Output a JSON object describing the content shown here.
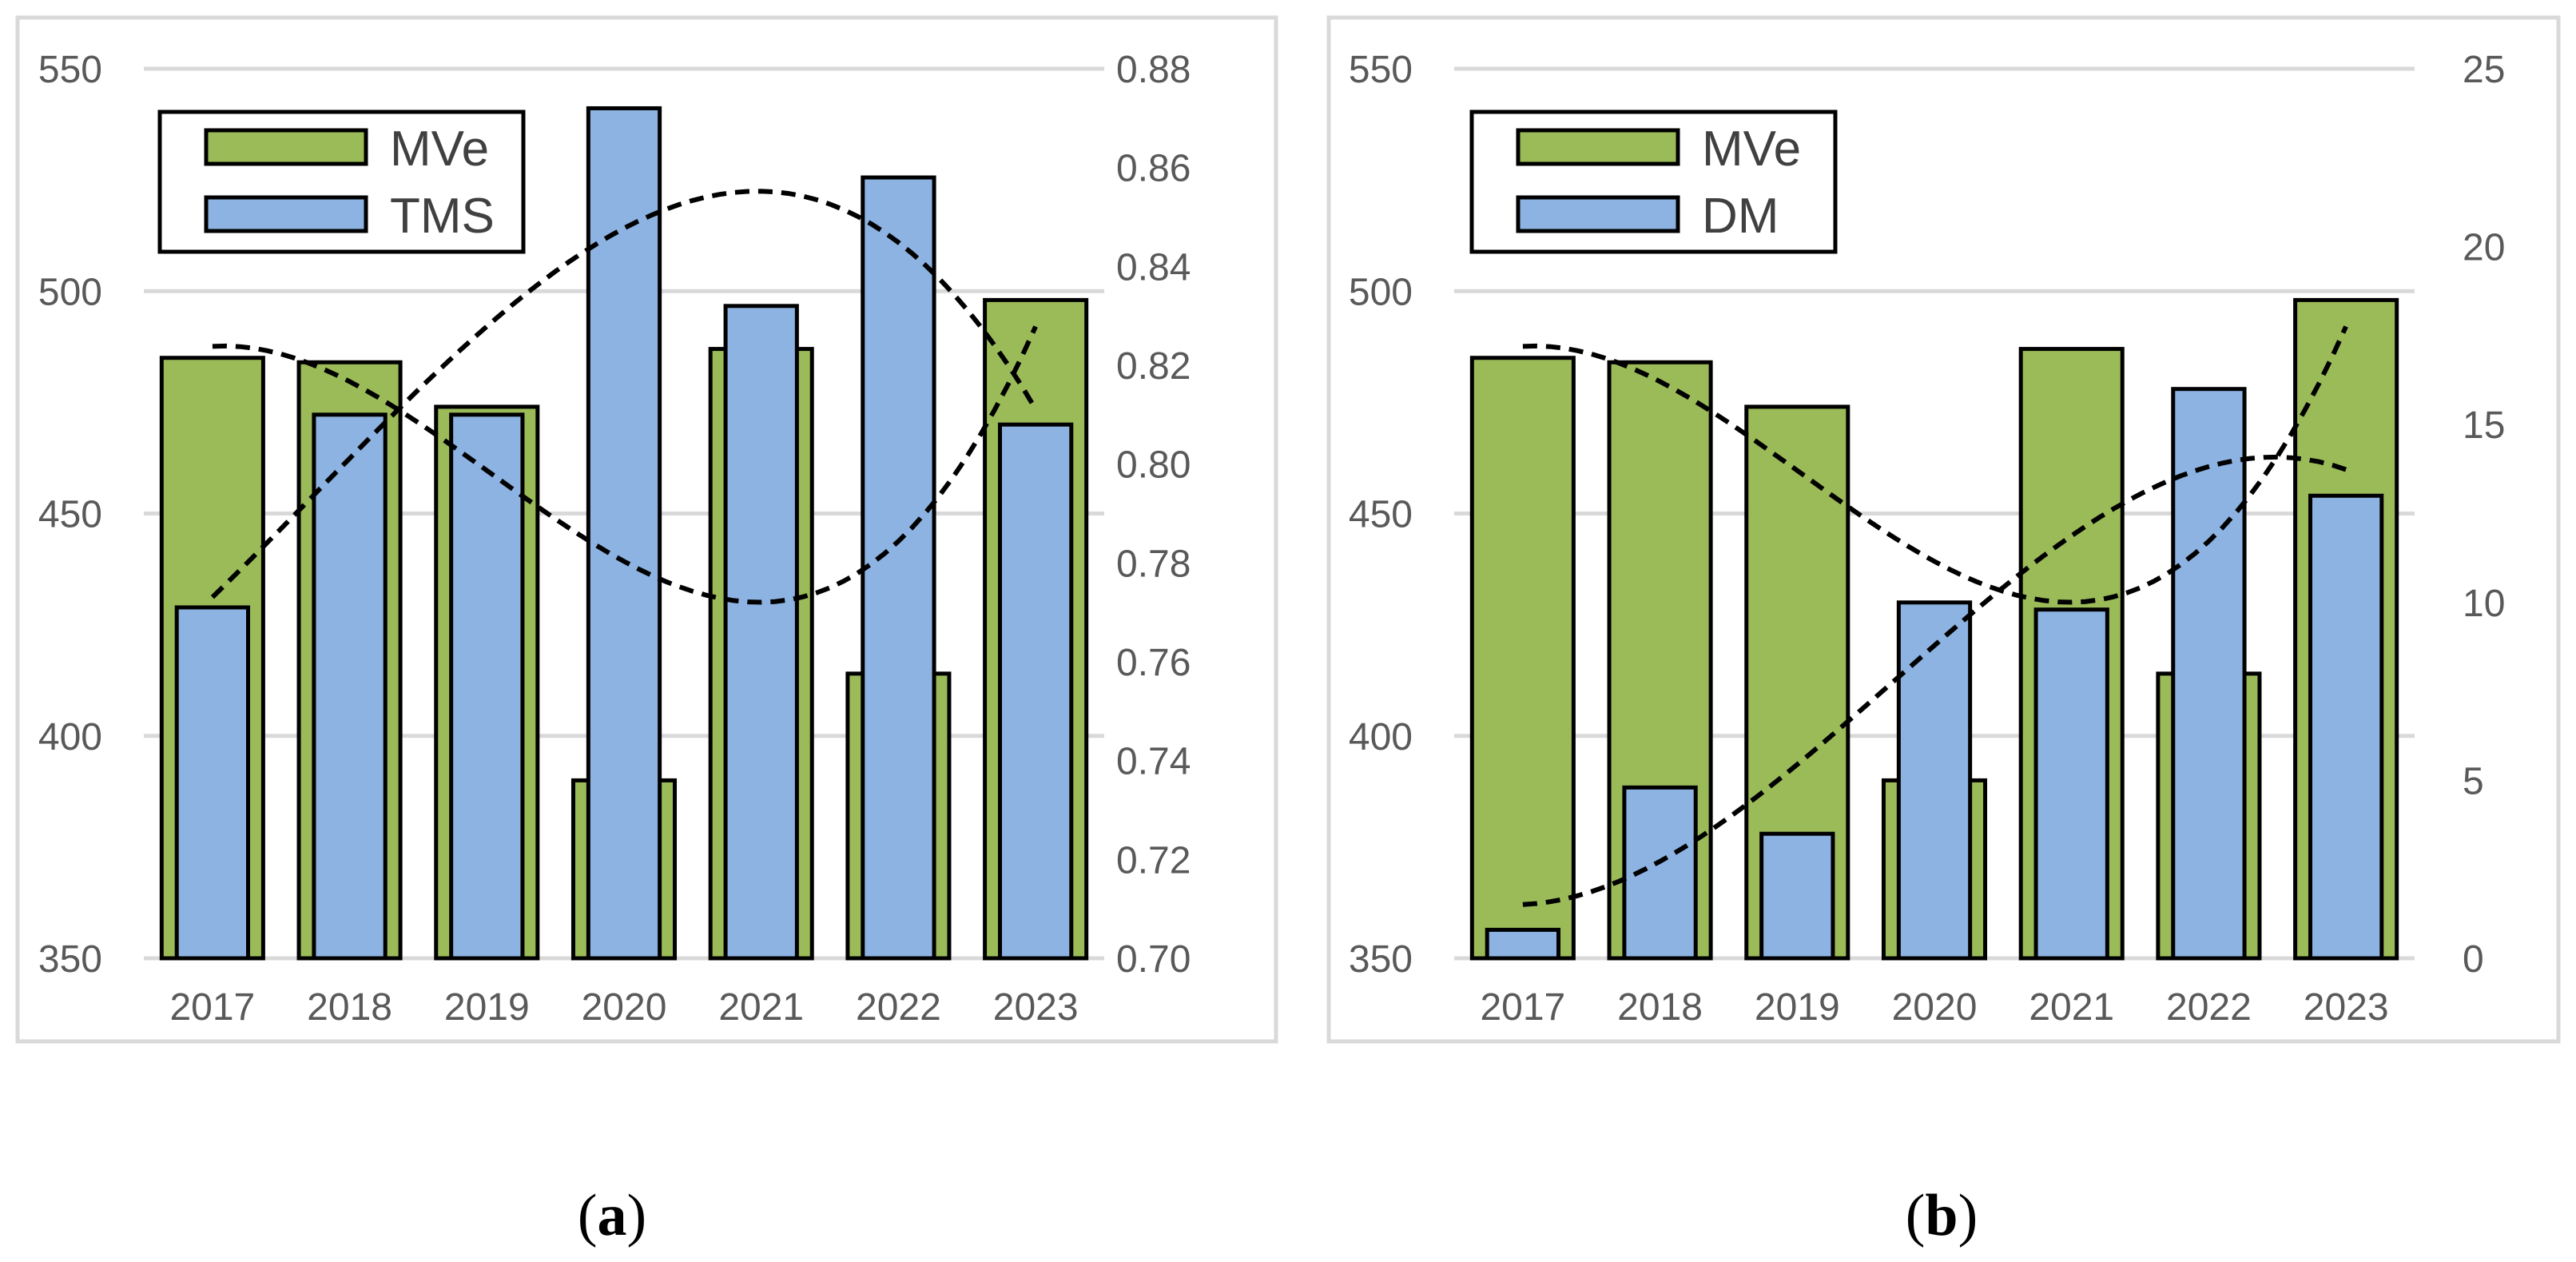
{
  "colors": {
    "bar_primary": "#9bbb59",
    "bar_secondary": "#8db3e2",
    "outline": "#000000",
    "grid": "#d9d9d9",
    "frame": "#d9d9d9",
    "tick_text": "#595959"
  },
  "chart_data": [
    {
      "panel": "a",
      "caption_letter": "a",
      "type": "bar",
      "categories": [
        "2017",
        "2018",
        "2019",
        "2020",
        "2021",
        "2022",
        "2023"
      ],
      "series": [
        {
          "name": "MVe",
          "axis": "left",
          "values": [
            485,
            484,
            474,
            390,
            487,
            414,
            498
          ]
        },
        {
          "name": "TMS",
          "axis": "right",
          "values": [
            0.771,
            0.81,
            0.81,
            0.872,
            0.832,
            0.858,
            0.808
          ]
        }
      ],
      "trendlines": [
        {
          "series": "MVe",
          "style": "dashed",
          "type": "polynomial"
        },
        {
          "series": "TMS",
          "style": "dashed",
          "type": "polynomial"
        }
      ],
      "left_axis": {
        "min": 350,
        "max": 550,
        "step": 50,
        "ticks": [
          "350",
          "400",
          "450",
          "500",
          "550"
        ]
      },
      "right_axis": {
        "min": 0.7,
        "max": 0.88,
        "step": 0.02,
        "ticks": [
          "0.70",
          "0.72",
          "0.74",
          "0.76",
          "0.78",
          "0.80",
          "0.82",
          "0.84",
          "0.86",
          "0.88"
        ]
      },
      "legend": {
        "position": "top-left",
        "entries": [
          "MVe",
          "TMS"
        ]
      },
      "grid": true
    },
    {
      "panel": "b",
      "caption_letter": "b",
      "type": "bar",
      "categories": [
        "2017",
        "2018",
        "2019",
        "2020",
        "2021",
        "2022",
        "2023"
      ],
      "series": [
        {
          "name": "MVe",
          "axis": "left",
          "values": [
            485,
            484,
            474,
            390,
            487,
            414,
            498
          ]
        },
        {
          "name": "DM",
          "axis": "right",
          "values": [
            0.8,
            4.8,
            3.5,
            10.0,
            9.8,
            16.0,
            13.0
          ]
        }
      ],
      "trendlines": [
        {
          "series": "MVe",
          "style": "dashed",
          "type": "polynomial"
        },
        {
          "series": "DM",
          "style": "dashed",
          "type": "polynomial"
        }
      ],
      "left_axis": {
        "min": 350,
        "max": 550,
        "step": 50,
        "ticks": [
          "350",
          "400",
          "450",
          "500",
          "550"
        ]
      },
      "right_axis": {
        "min": 0,
        "max": 25,
        "step": 5,
        "ticks": [
          "0",
          "5",
          "10",
          "15",
          "20",
          "25"
        ]
      },
      "legend": {
        "position": "top-left",
        "entries": [
          "MVe",
          "DM"
        ]
      },
      "grid": true
    }
  ]
}
